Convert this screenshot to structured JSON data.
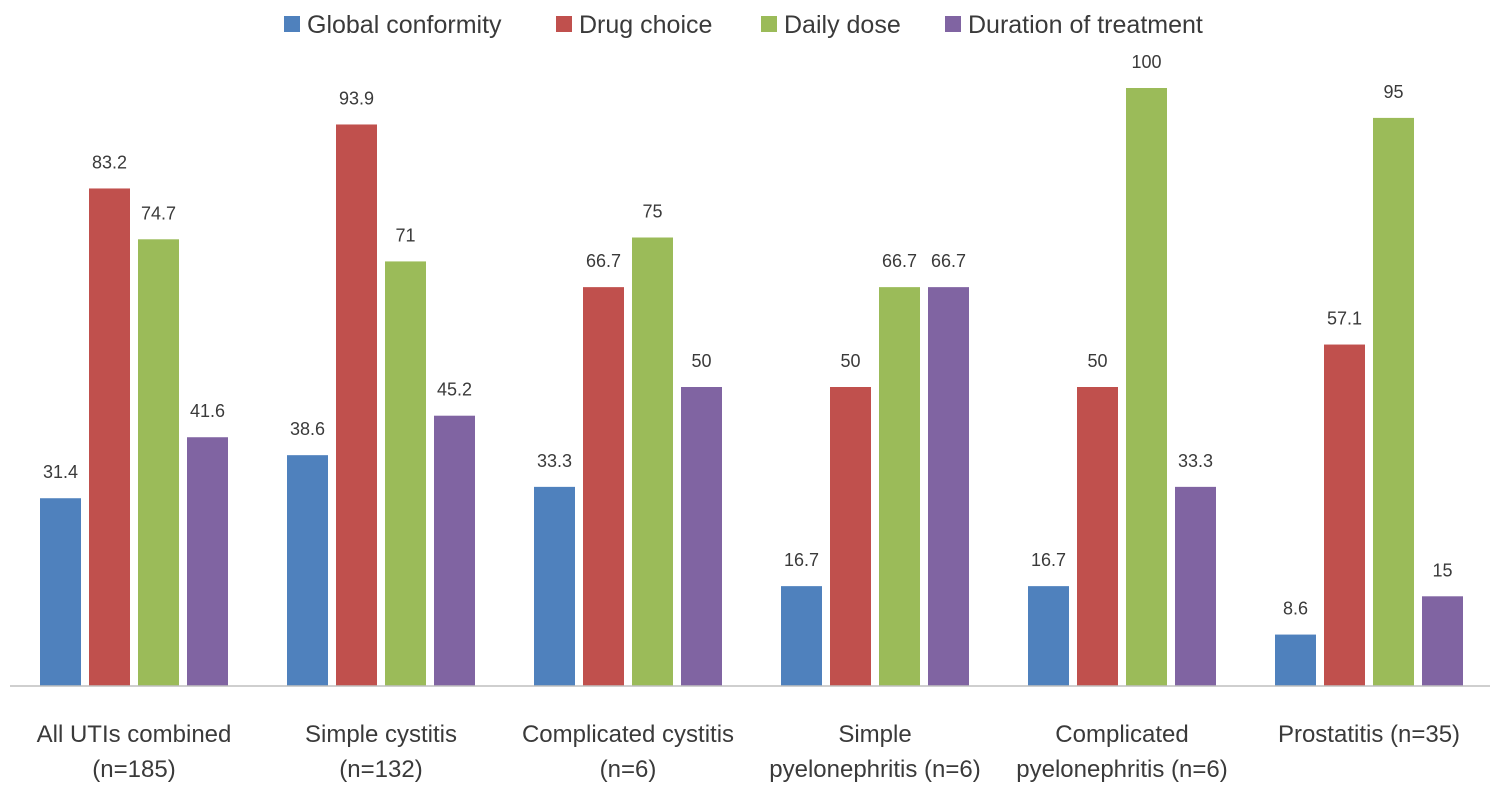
{
  "chart_data": {
    "type": "bar",
    "title": "",
    "xlabel": "",
    "ylabel": "",
    "ylim": [
      0,
      100
    ],
    "grid": false,
    "legend_position": "top",
    "value_labels": true,
    "categories": [
      [
        "All UTIs combined",
        "(n=185)"
      ],
      [
        "Simple cystitis",
        "(n=132)"
      ],
      [
        "Complicated cystitis",
        "(n=6)"
      ],
      [
        "Simple",
        "pyelonephritis (n=6)"
      ],
      [
        "Complicated",
        "pyelonephritis (n=6)"
      ],
      [
        "Prostatitis (n=35)"
      ]
    ],
    "series": [
      {
        "name": "Global conformity",
        "color": "#4f81bd",
        "values": [
          31.4,
          38.6,
          33.3,
          16.7,
          16.7,
          8.6
        ],
        "labels": [
          "31.4",
          "38.6",
          "33.3",
          "16.7",
          "16.7",
          "8.6"
        ]
      },
      {
        "name": "Drug choice",
        "color": "#c0504d",
        "values": [
          83.2,
          93.9,
          66.7,
          50,
          50,
          57.1
        ],
        "labels": [
          "83.2",
          "93.9",
          "66.7",
          "50",
          "50",
          "57.1"
        ]
      },
      {
        "name": "Daily dose",
        "color": "#9bbb59",
        "values": [
          74.7,
          71,
          75,
          66.7,
          100,
          95
        ],
        "labels": [
          "74.7",
          "71",
          "75",
          "66.7",
          "100",
          "95"
        ]
      },
      {
        "name": "Duration of treatment",
        "color": "#8064a2",
        "values": [
          41.6,
          45.2,
          50,
          66.7,
          33.3,
          15
        ],
        "labels": [
          "41.6",
          "45.2",
          "50",
          "66.7",
          "33.3",
          "15"
        ]
      }
    ]
  }
}
